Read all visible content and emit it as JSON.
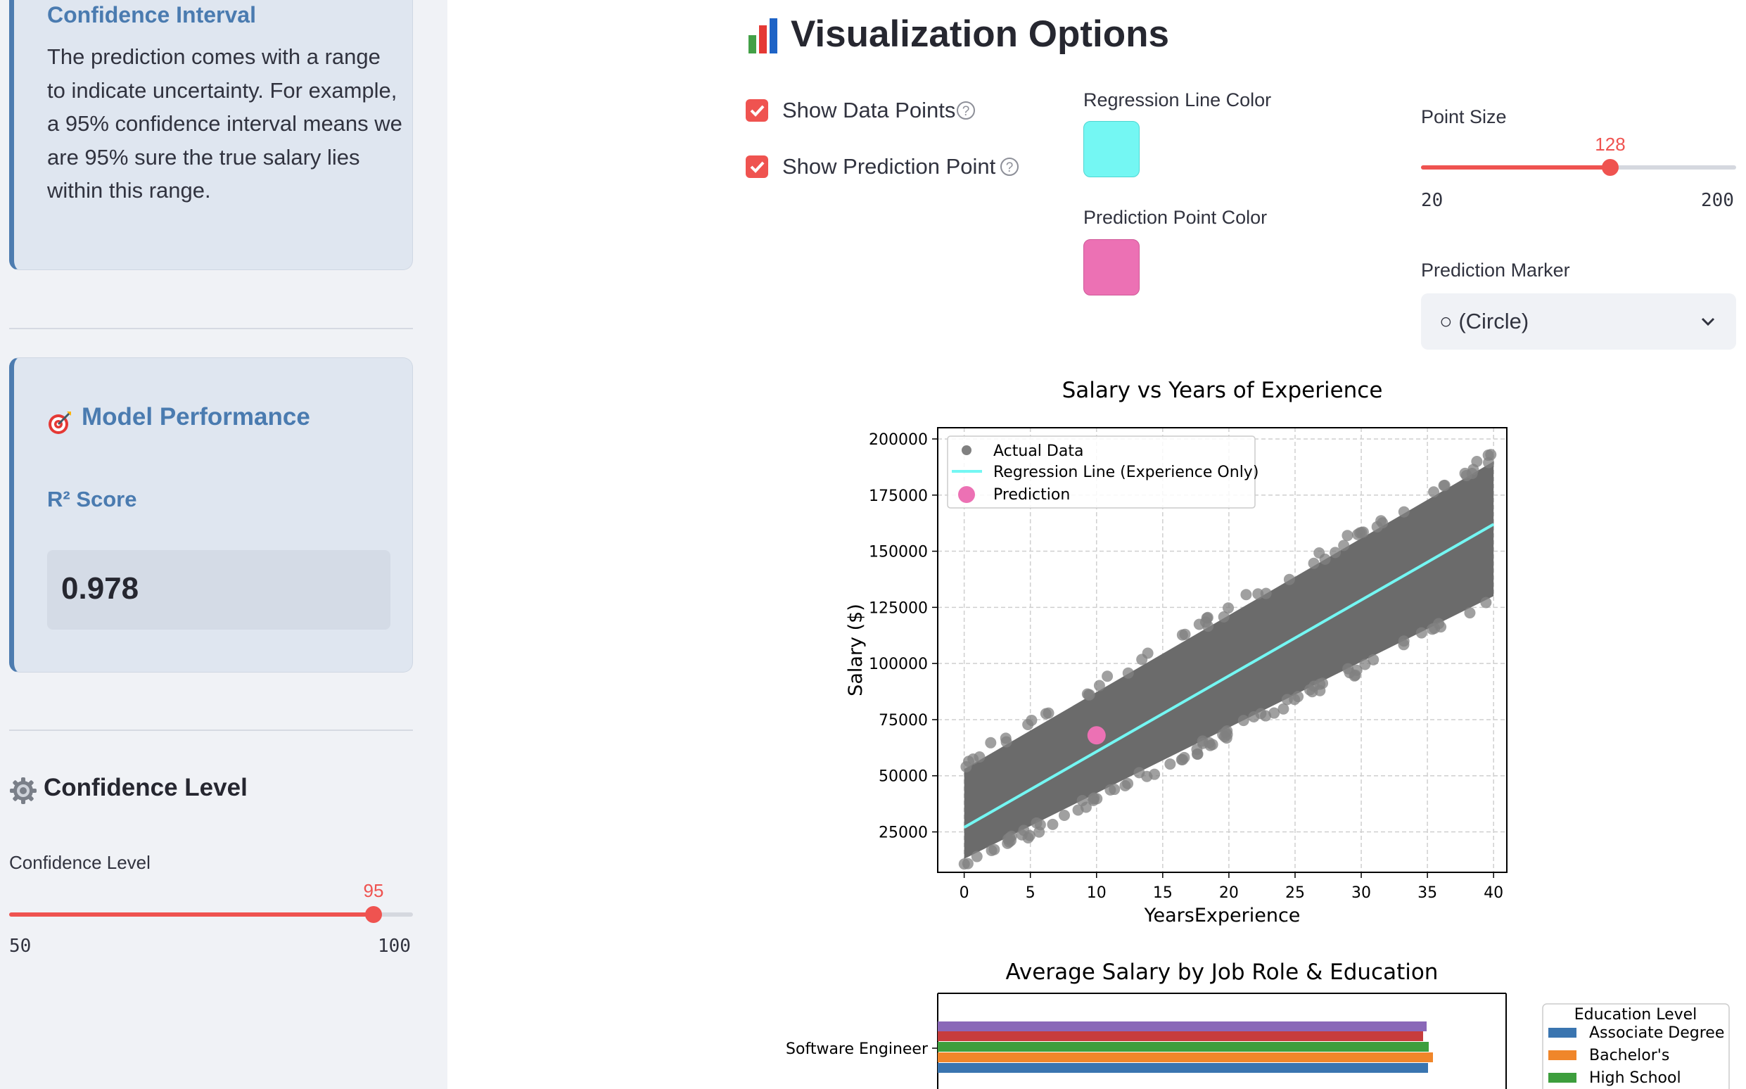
{
  "sidebar": {
    "confidence_interval": {
      "title": "Confidence Interval",
      "lines": [
        "The prediction comes with a range",
        "to indicate uncertainty. For example,",
        "a 95% confidence interval means we",
        "are 95% sure the true salary lies",
        "within this range."
      ]
    },
    "model_performance": {
      "icon": "target-icon",
      "title": "Model Performance",
      "metric_label": "R² Score",
      "metric_value": "0.978"
    },
    "confidence_level": {
      "icon": "gear-icon",
      "header": "Confidence Level",
      "slider_label": "Confidence Level",
      "value": "95",
      "min": "50",
      "max": "100"
    }
  },
  "main": {
    "header": {
      "icon": "bar-chart-icon",
      "title": "Visualization Options"
    },
    "options": {
      "show_data_points": {
        "label": "Show Data Points",
        "checked": true
      },
      "show_prediction_point": {
        "label": "Show Prediction Point",
        "checked": true
      },
      "regression_line_color": {
        "label": "Regression Line Color",
        "value": "#74f7f3"
      },
      "prediction_point_color": {
        "label": "Prediction Point Color",
        "value": "#ec71b4"
      },
      "point_size": {
        "label": "Point Size",
        "value": "128",
        "min": "20",
        "max": "200"
      },
      "prediction_marker": {
        "label": "Prediction Marker",
        "selected": "○ (Circle)"
      }
    }
  },
  "chart_data": [
    {
      "type": "scatter",
      "title": "Salary vs Years of Experience",
      "xlabel": "YearsExperience",
      "ylabel": "Salary ($)",
      "xlim": [
        -2,
        41
      ],
      "ylim": [
        7000,
        205000
      ],
      "xticks": [
        "0",
        "5",
        "10",
        "15",
        "20",
        "25",
        "30",
        "35",
        "40"
      ],
      "yticks": [
        "25000",
        "50000",
        "75000",
        "100000",
        "125000",
        "150000",
        "175000",
        "200000"
      ],
      "grid": true,
      "legend_position": "top-left",
      "series": [
        {
          "name": "Actual Data",
          "type": "scatter-band",
          "x_range": [
            0,
            40
          ],
          "y_at_x0": [
            13000,
            53000
          ],
          "y_at_x40": [
            130000,
            190000
          ]
        },
        {
          "name": "Regression Line (Experience Only)",
          "type": "line",
          "x": [
            0,
            40
          ],
          "y": [
            27000,
            162000
          ]
        },
        {
          "name": "Prediction",
          "type": "point",
          "x": [
            10
          ],
          "y": [
            68000
          ]
        }
      ]
    },
    {
      "type": "bar",
      "orientation": "horizontal",
      "title": "Average Salary by Job Role & Education",
      "categories": [
        "Software Engineer"
      ],
      "legend_title": "Education Level",
      "legend": [
        "Associate Degree",
        "Bachelor's",
        "High School"
      ],
      "bar_colors": [
        "#3a75b0",
        "#f0862a",
        "#3d9e3d",
        "#c73c3c",
        "#8a68b8"
      ]
    }
  ]
}
